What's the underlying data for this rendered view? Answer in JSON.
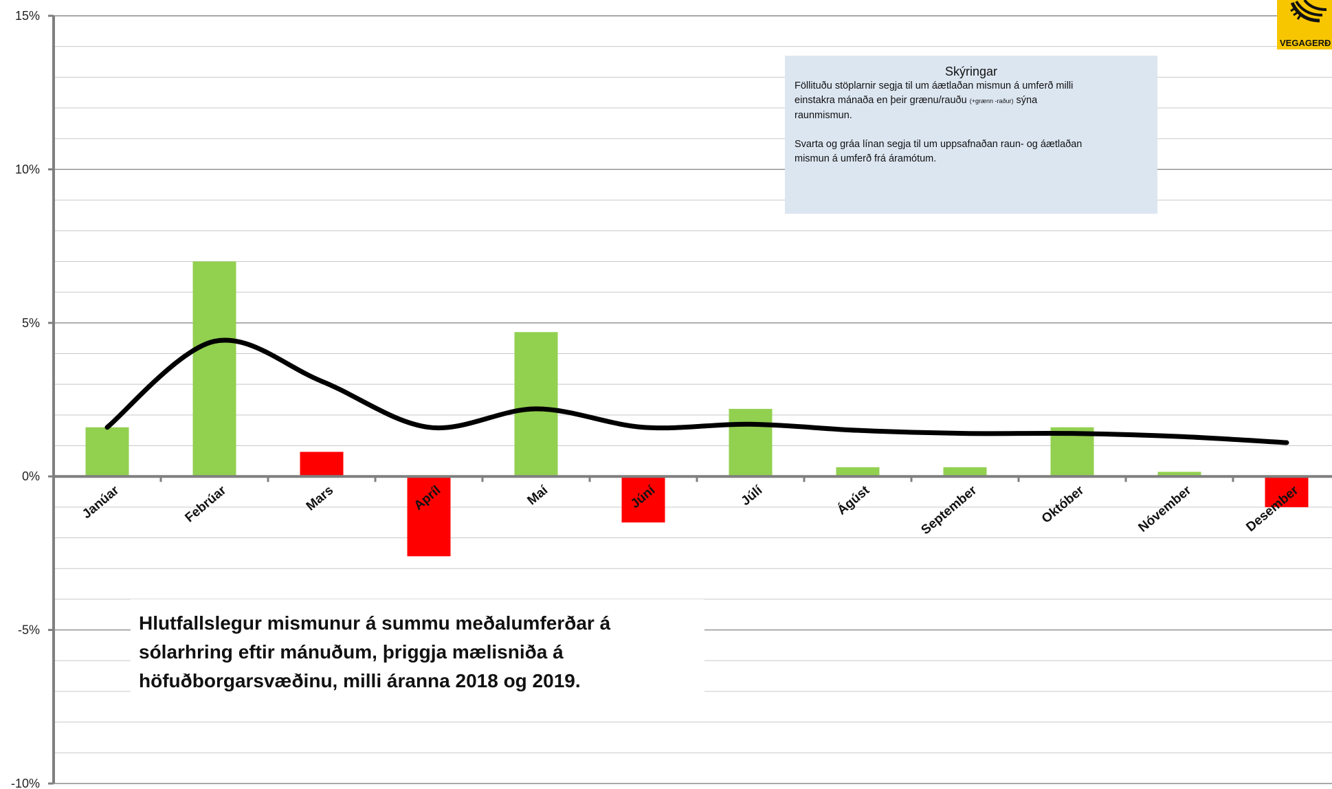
{
  "chart_data": {
    "type": "bar",
    "categories": [
      "Janúar",
      "Febrúar",
      "Mars",
      "Apríl",
      "Maí",
      "Júní",
      "Júlí",
      "Ágúst",
      "September",
      "Október",
      "Nóvember",
      "Desember"
    ],
    "series": [
      {
        "values": [
          1.6,
          7.0,
          0.8,
          -2.6,
          4.7,
          -1.5,
          2.2,
          0.3,
          0.3,
          1.6,
          0.15,
          -1.0
        ],
        "colors": [
          "#92d050",
          "#92d050",
          "#ff0000",
          "#ff0000",
          "#92d050",
          "#ff0000",
          "#92d050",
          "#92d050",
          "#92d050",
          "#92d050",
          "#92d050",
          "#ff0000"
        ]
      },
      {
        "type": "line",
        "color": "#000000",
        "values": [
          1.6,
          4.4,
          3.1,
          1.6,
          2.2,
          1.6,
          1.7,
          1.5,
          1.4,
          1.4,
          1.3,
          1.1
        ]
      }
    ],
    "ylim": [
      -10,
      15
    ],
    "yticks": [
      -10,
      -5,
      0,
      5,
      10,
      15
    ],
    "ytick_labels": [
      "-10%",
      "-5%",
      "0%",
      "5%",
      "10%",
      "15%"
    ],
    "grid": true,
    "minor_grid_step": 1
  },
  "legend": {
    "title": "Skýringar",
    "line1": "Föllituðu stöplarnir segja til um áætlaðan mismun á umferð milli",
    "line2_start": "einstakra mánaða en þeir grænu/rauðu ",
    "line2_small": "(+grænn -raður)",
    "line2_end": " sýna",
    "line3": "raunmismun.",
    "line4": "Svarta og gráa línan segja til um uppsafnaðan raun- og áætlaðan",
    "line5": "mismun á umferð frá áramótum."
  },
  "note": {
    "line1": "Hlutfallslegur mismunur á summu meðalumferðar á",
    "line2": "sólarhring eftir mánuðum, þriggja mælisniða á",
    "line3": "höfuðborgarsvæðinu, milli áranna 2018 og 2019."
  },
  "logo": {
    "text": "VEGAGERÐ",
    "color": "#f7c600"
  }
}
